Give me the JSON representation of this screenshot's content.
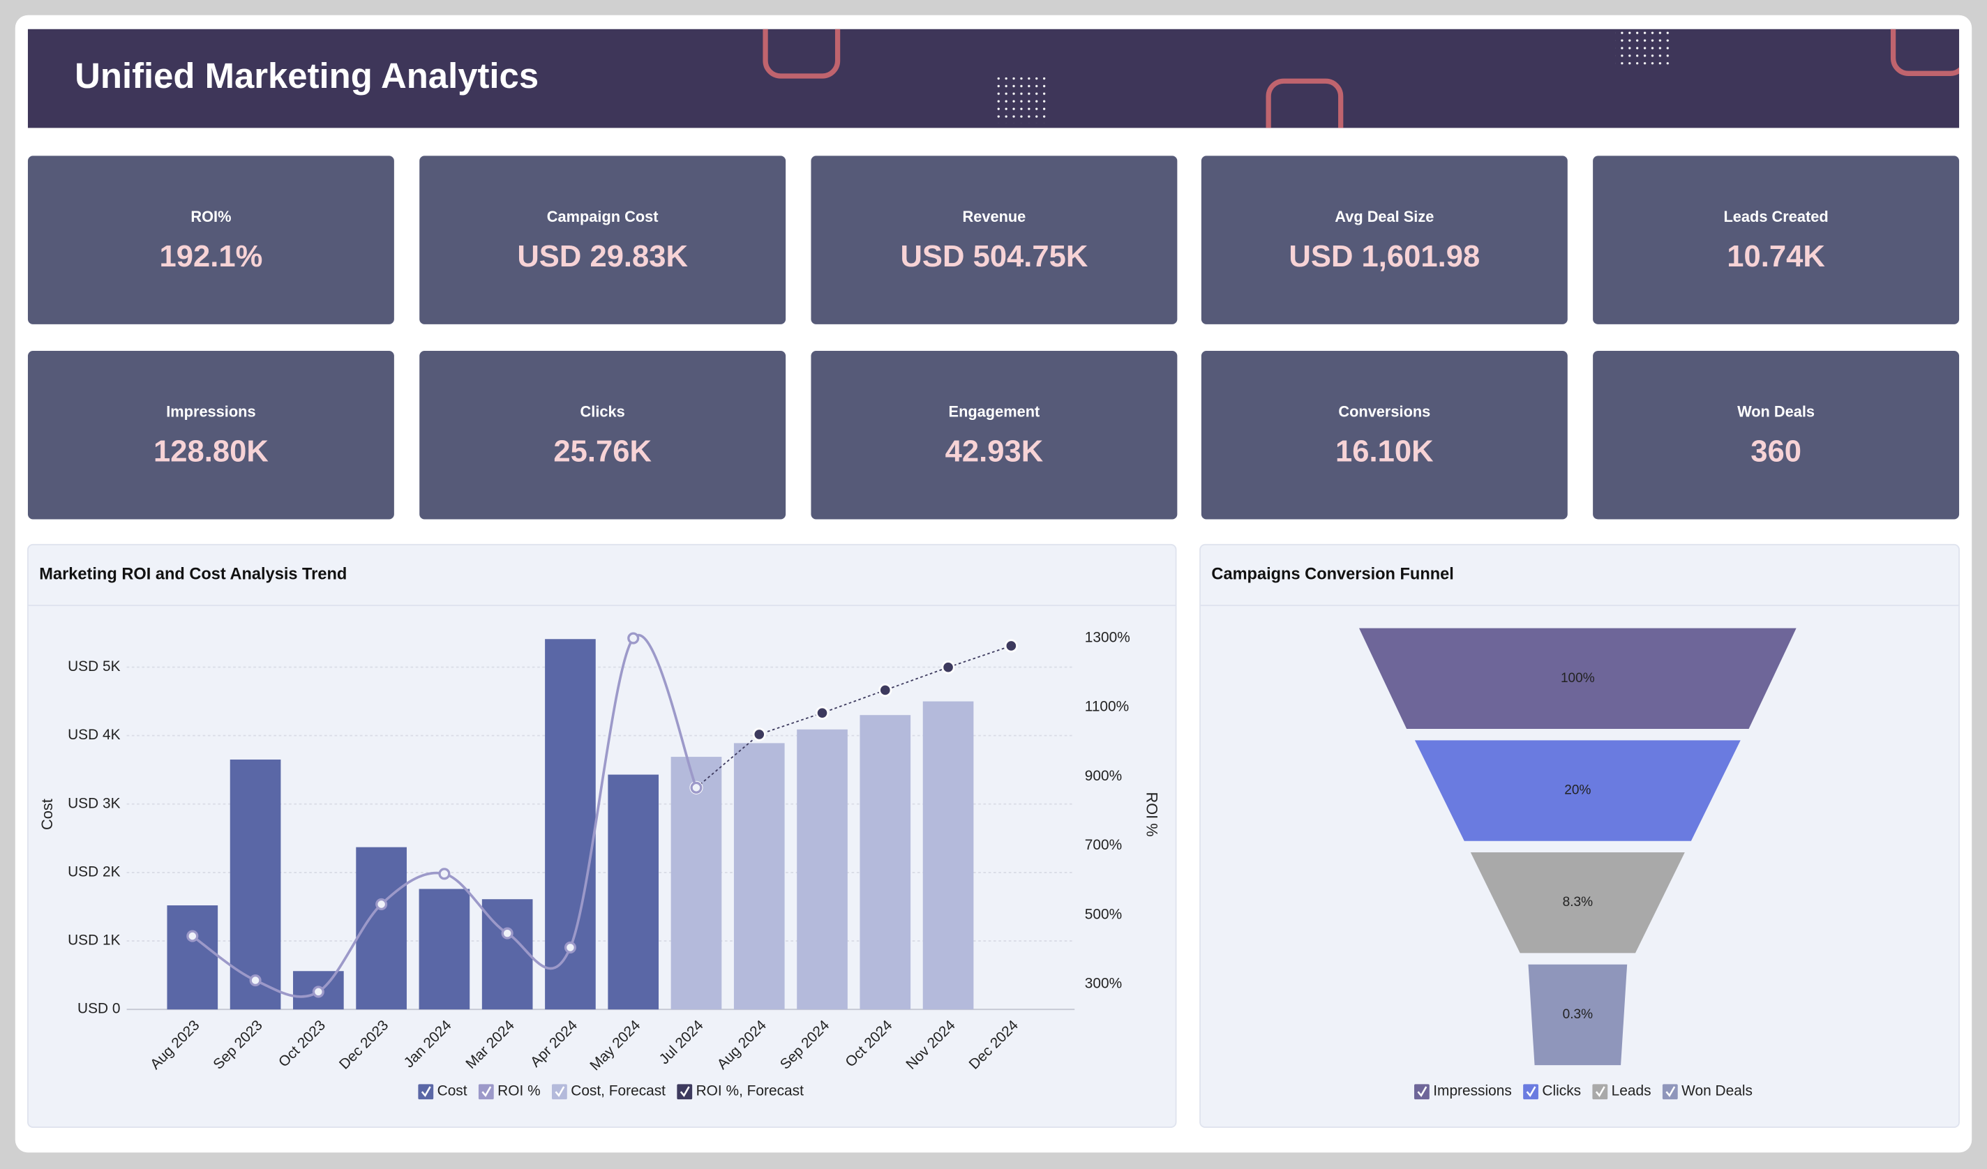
{
  "header": {
    "title": "Unified Marketing Analytics"
  },
  "kpis": [
    {
      "label": "ROI%",
      "value": "192.1%"
    },
    {
      "label": "Campaign Cost",
      "value": "USD 29.83K"
    },
    {
      "label": "Revenue",
      "value": "USD 504.75K"
    },
    {
      "label": "Avg Deal Size",
      "value": "USD 1,601.98"
    },
    {
      "label": "Leads Created",
      "value": "10.74K"
    },
    {
      "label": "Impressions",
      "value": "128.80K"
    },
    {
      "label": "Clicks",
      "value": "25.76K"
    },
    {
      "label": "Engagement",
      "value": "42.93K"
    },
    {
      "label": "Conversions",
      "value": "16.10K"
    },
    {
      "label": "Won Deals",
      "value": "360"
    }
  ],
  "chart_data": [
    {
      "type": "combo",
      "title": "Marketing ROI and Cost Analysis Trend",
      "categories": [
        "Aug 2023",
        "Sep 2023",
        "Oct 2023",
        "Dec 2023",
        "Jan 2024",
        "Mar 2024",
        "Apr 2024",
        "May 2024",
        "Jul 2024",
        "Aug 2024",
        "Sep 2024",
        "Oct 2024",
        "Nov 2024",
        "Dec 2024"
      ],
      "series": [
        {
          "name": "Cost",
          "type": "bar",
          "color": "#5a67a6",
          "values": [
            1520,
            3650,
            560,
            2370,
            1760,
            1610,
            5410,
            3430,
            null,
            null,
            null,
            null,
            null,
            null
          ]
        },
        {
          "name": "ROI %",
          "type": "line",
          "axis": "y2",
          "color": "#9c99c9",
          "values": [
            439,
            311,
            278,
            531,
            619,
            447,
            406,
            1300,
            868,
            null,
            null,
            null,
            null,
            null
          ]
        },
        {
          "name": "Cost, Forecast",
          "type": "bar",
          "color": "#b4badb",
          "values": [
            null,
            null,
            null,
            null,
            null,
            null,
            null,
            null,
            3690,
            3890,
            4090,
            4300,
            4500,
            null
          ]
        },
        {
          "name": "ROI %, Forecast",
          "type": "line",
          "axis": "y2",
          "dashed": true,
          "color": "#3d3a5e",
          "values": [
            null,
            null,
            null,
            null,
            null,
            null,
            null,
            null,
            868,
            1022,
            1084,
            1150,
            1216,
            1278
          ]
        }
      ],
      "ylabel": "Cost",
      "y2label": "ROI %",
      "ylim": [
        0,
        5680
      ],
      "yticks": [
        {
          "value": 0,
          "label": "USD 0"
        },
        {
          "value": 1000,
          "label": "USD 1K"
        },
        {
          "value": 2000,
          "label": "USD 2K"
        },
        {
          "value": 3000,
          "label": "USD 3K"
        },
        {
          "value": 4000,
          "label": "USD 4K"
        },
        {
          "value": 5000,
          "label": "USD 5K"
        }
      ],
      "y2lim": [
        227,
        1351
      ],
      "y2ticks": [
        {
          "value": 300,
          "label": "300%"
        },
        {
          "value": 500,
          "label": "500%"
        },
        {
          "value": 700,
          "label": "700%"
        },
        {
          "value": 900,
          "label": "900%"
        },
        {
          "value": 1100,
          "label": "1100%"
        },
        {
          "value": 1300,
          "label": "1300%"
        }
      ],
      "grid": true
    },
    {
      "type": "funnel",
      "title": "Campaigns Conversion Funnel",
      "categories": [
        "Impressions",
        "Clicks",
        "Leads",
        "Won Deals"
      ],
      "values": [
        100,
        20,
        8.3,
        0.3
      ],
      "value_labels": [
        "100%",
        "20%",
        "8.3%",
        "0.3%"
      ],
      "colors": [
        "#6e6699",
        "#6a7be0",
        "#a9a9a9",
        "#8f96bb"
      ]
    }
  ]
}
